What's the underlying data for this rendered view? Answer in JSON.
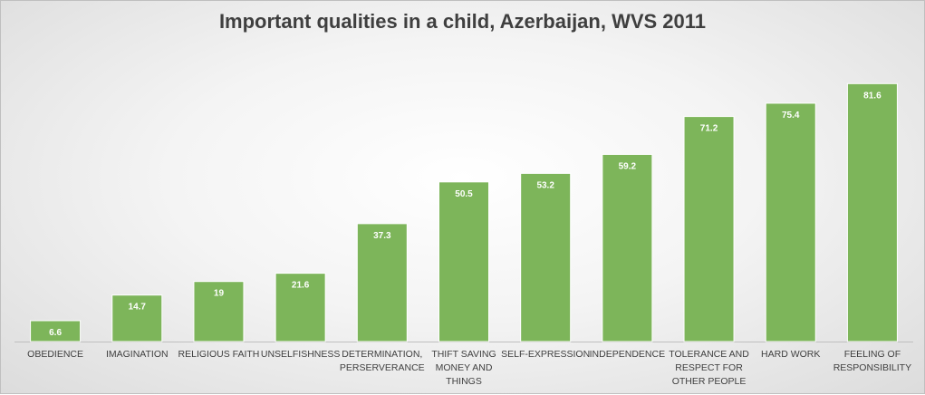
{
  "chart_data": {
    "type": "bar",
    "title": "Important qualities in a child, Azerbaijan, WVS 2011",
    "categories": [
      "OBEDIENCE",
      "IMAGINATION",
      "RELIGIOUS FAITH",
      "UNSELFISHNESS",
      "DETERMINATION, PERSERVERANCE",
      "THIFT SAVING MONEY AND THINGS",
      "SELF-EXPRESSION",
      "INDEPENDENCE",
      "TOLERANCE AND RESPECT FOR OTHER PEOPLE",
      "HARD WORK",
      "FEELING OF RESPONSIBILITY"
    ],
    "category_lines": [
      [
        "OBEDIENCE"
      ],
      [
        "IMAGINATION"
      ],
      [
        "RELIGIOUS FAITH"
      ],
      [
        "UNSELFISHNESS"
      ],
      [
        "DETERMINATION,",
        "PERSERVERANCE"
      ],
      [
        "THIFT SAVING",
        "MONEY AND",
        "THINGS"
      ],
      [
        "SELF-EXPRESSION"
      ],
      [
        "INDEPENDENCE"
      ],
      [
        "TOLERANCE AND",
        "RESPECT FOR",
        "OTHER PEOPLE"
      ],
      [
        "HARD WORK"
      ],
      [
        "FEELING OF",
        "RESPONSIBILITY"
      ]
    ],
    "values": [
      6.6,
      14.7,
      19,
      21.6,
      37.3,
      50.5,
      53.2,
      59.2,
      71.2,
      75.4,
      81.6
    ],
    "value_labels": [
      "6.6",
      "14.7",
      "19",
      "21.6",
      "37.3",
      "50.5",
      "53.2",
      "59.2",
      "71.2",
      "75.4",
      "81.6"
    ],
    "ylim": [
      0,
      90
    ],
    "xlabel": "",
    "ylabel": "",
    "grid": false,
    "legend": "none",
    "colors": {
      "bar": "#7db55a",
      "bar_edge": "#ffffff",
      "axis": "#bfbfbf",
      "title": "#3f3f3f"
    }
  }
}
